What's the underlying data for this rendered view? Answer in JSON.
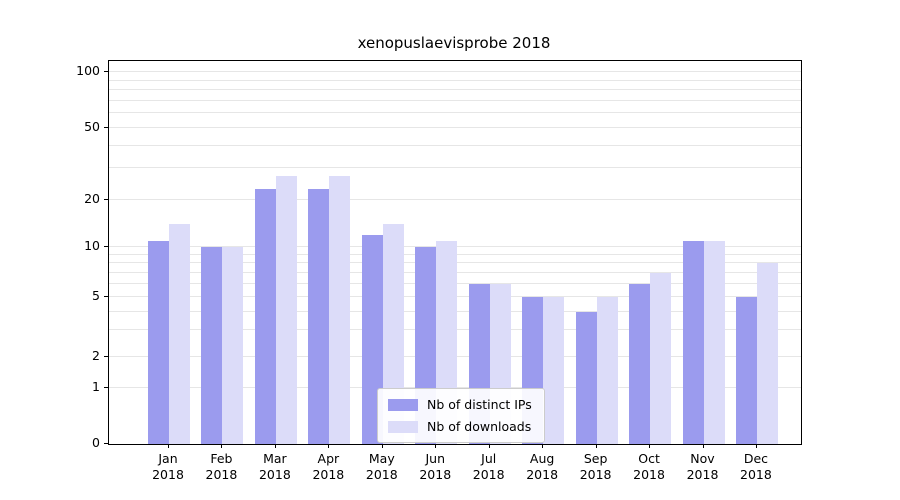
{
  "title": "xenopuslaevisprobe 2018",
  "chart_data": {
    "type": "bar",
    "title": "xenopuslaevisprobe 2018",
    "scale": "symlog",
    "categories": [
      "Jan 2018",
      "Feb 2018",
      "Mar 2018",
      "Apr 2018",
      "May 2018",
      "Jun 2018",
      "Jul 2018",
      "Aug 2018",
      "Sep 2018",
      "Oct 2018",
      "Nov 2018",
      "Dec 2018"
    ],
    "category_line1": [
      "Jan",
      "Feb",
      "Mar",
      "Apr",
      "May",
      "Jun",
      "Jul",
      "Aug",
      "Sep",
      "Oct",
      "Nov",
      "Dec"
    ],
    "category_line2": "2018",
    "series": [
      {
        "name": "Nb of distinct IPs",
        "color": "#9b9bee",
        "values": [
          11,
          10,
          23,
          23,
          12,
          10,
          6,
          5,
          4,
          6,
          11,
          5
        ]
      },
      {
        "name": "Nb of downloads",
        "color": "#dcdcf9",
        "values": [
          14,
          10,
          27,
          27,
          14,
          11,
          6,
          5,
          5,
          7,
          11,
          8
        ]
      }
    ],
    "yticks": [
      0,
      1,
      2,
      5,
      10,
      20,
      50,
      100
    ],
    "ylim": [
      0,
      100
    ],
    "grid": true,
    "legend_position": "lower center"
  },
  "colors": {
    "grid": "#e6e6e6",
    "axis": "#000000",
    "background": "#ffffff"
  }
}
